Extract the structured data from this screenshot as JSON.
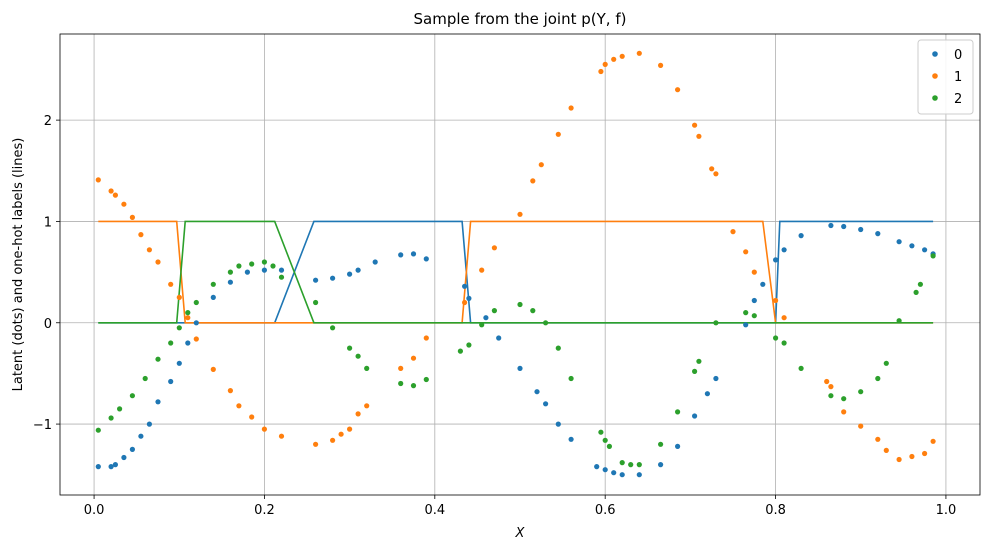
{
  "chart_data": {
    "type": "scatter",
    "title": "Sample from the joint p(Y, f)",
    "xlabel": "X",
    "ylabel": "Latent (dots) and one-hot labels (lines)",
    "xlim": [
      -0.04,
      1.04
    ],
    "ylim": [
      -1.7,
      2.85
    ],
    "xticks": [
      0.0,
      0.2,
      0.4,
      0.6,
      0.8,
      1.0
    ],
    "xtick_labels": [
      "0.0",
      "0.2",
      "0.4",
      "0.6",
      "0.8",
      "1.0"
    ],
    "yticks": [
      -1,
      0,
      1,
      2
    ],
    "ytick_labels": [
      "−1",
      "0",
      "1",
      "2"
    ],
    "grid": true,
    "legend_position": "top-right",
    "series": [
      {
        "name": "0",
        "color": "#1f77b4",
        "points": [
          [
            0.005,
            -1.42
          ],
          [
            0.02,
            -1.42
          ],
          [
            0.025,
            -1.4
          ],
          [
            0.035,
            -1.33
          ],
          [
            0.045,
            -1.25
          ],
          [
            0.055,
            -1.12
          ],
          [
            0.065,
            -1.0
          ],
          [
            0.075,
            -0.78
          ],
          [
            0.09,
            -0.58
          ],
          [
            0.1,
            -0.4
          ],
          [
            0.11,
            -0.2
          ],
          [
            0.12,
            0.0
          ],
          [
            0.14,
            0.25
          ],
          [
            0.16,
            0.4
          ],
          [
            0.18,
            0.5
          ],
          [
            0.2,
            0.52
          ],
          [
            0.22,
            0.52
          ],
          [
            0.26,
            0.42
          ],
          [
            0.28,
            0.44
          ],
          [
            0.3,
            0.48
          ],
          [
            0.31,
            0.52
          ],
          [
            0.33,
            0.6
          ],
          [
            0.36,
            0.67
          ],
          [
            0.375,
            0.68
          ],
          [
            0.39,
            0.63
          ],
          [
            0.435,
            0.36
          ],
          [
            0.44,
            0.24
          ],
          [
            0.46,
            0.05
          ],
          [
            0.475,
            -0.15
          ],
          [
            0.5,
            -0.45
          ],
          [
            0.52,
            -0.68
          ],
          [
            0.53,
            -0.8
          ],
          [
            0.545,
            -1.0
          ],
          [
            0.56,
            -1.15
          ],
          [
            0.59,
            -1.42
          ],
          [
            0.6,
            -1.45
          ],
          [
            0.61,
            -1.48
          ],
          [
            0.62,
            -1.5
          ],
          [
            0.64,
            -1.5
          ],
          [
            0.665,
            -1.4
          ],
          [
            0.685,
            -1.22
          ],
          [
            0.705,
            -0.92
          ],
          [
            0.72,
            -0.7
          ],
          [
            0.73,
            -0.55
          ],
          [
            0.765,
            -0.02
          ],
          [
            0.775,
            0.22
          ],
          [
            0.785,
            0.38
          ],
          [
            0.8,
            0.62
          ],
          [
            0.81,
            0.72
          ],
          [
            0.83,
            0.86
          ],
          [
            0.865,
            0.96
          ],
          [
            0.88,
            0.95
          ],
          [
            0.9,
            0.92
          ],
          [
            0.92,
            0.88
          ],
          [
            0.945,
            0.8
          ],
          [
            0.96,
            0.76
          ],
          [
            0.975,
            0.72
          ],
          [
            0.985,
            0.68
          ]
        ],
        "line": [
          [
            0.005,
            0
          ],
          [
            0.212,
            0
          ],
          [
            0.258,
            1
          ],
          [
            0.432,
            1
          ],
          [
            0.442,
            0
          ],
          [
            0.8,
            0
          ],
          [
            0.805,
            1
          ],
          [
            0.985,
            1
          ]
        ]
      },
      {
        "name": "1",
        "color": "#ff7f0e",
        "points": [
          [
            0.005,
            1.41
          ],
          [
            0.02,
            1.3
          ],
          [
            0.025,
            1.26
          ],
          [
            0.035,
            1.17
          ],
          [
            0.045,
            1.04
          ],
          [
            0.055,
            0.87
          ],
          [
            0.065,
            0.72
          ],
          [
            0.075,
            0.6
          ],
          [
            0.09,
            0.38
          ],
          [
            0.1,
            0.25
          ],
          [
            0.11,
            0.05
          ],
          [
            0.12,
            -0.16
          ],
          [
            0.14,
            -0.46
          ],
          [
            0.16,
            -0.67
          ],
          [
            0.17,
            -0.82
          ],
          [
            0.185,
            -0.93
          ],
          [
            0.2,
            -1.05
          ],
          [
            0.22,
            -1.12
          ],
          [
            0.26,
            -1.2
          ],
          [
            0.28,
            -1.16
          ],
          [
            0.29,
            -1.1
          ],
          [
            0.3,
            -1.05
          ],
          [
            0.31,
            -0.9
          ],
          [
            0.32,
            -0.82
          ],
          [
            0.36,
            -0.45
          ],
          [
            0.375,
            -0.35
          ],
          [
            0.39,
            -0.15
          ],
          [
            0.435,
            0.2
          ],
          [
            0.455,
            0.52
          ],
          [
            0.47,
            0.74
          ],
          [
            0.5,
            1.07
          ],
          [
            0.515,
            1.4
          ],
          [
            0.525,
            1.56
          ],
          [
            0.545,
            1.86
          ],
          [
            0.56,
            2.12
          ],
          [
            0.595,
            2.48
          ],
          [
            0.6,
            2.55
          ],
          [
            0.61,
            2.6
          ],
          [
            0.62,
            2.63
          ],
          [
            0.64,
            2.66
          ],
          [
            0.665,
            2.54
          ],
          [
            0.685,
            2.3
          ],
          [
            0.705,
            1.95
          ],
          [
            0.71,
            1.84
          ],
          [
            0.725,
            1.52
          ],
          [
            0.73,
            1.47
          ],
          [
            0.75,
            0.9
          ],
          [
            0.765,
            0.7
          ],
          [
            0.775,
            0.5
          ],
          [
            0.8,
            0.22
          ],
          [
            0.81,
            0.05
          ],
          [
            0.86,
            -0.58
          ],
          [
            0.865,
            -0.63
          ],
          [
            0.88,
            -0.88
          ],
          [
            0.9,
            -1.02
          ],
          [
            0.92,
            -1.15
          ],
          [
            0.93,
            -1.26
          ],
          [
            0.945,
            -1.35
          ],
          [
            0.96,
            -1.32
          ],
          [
            0.975,
            -1.29
          ],
          [
            0.985,
            -1.17
          ]
        ],
        "line": [
          [
            0.005,
            1
          ],
          [
            0.097,
            1
          ],
          [
            0.107,
            0
          ],
          [
            0.432,
            0
          ],
          [
            0.442,
            1
          ],
          [
            0.785,
            1
          ],
          [
            0.8,
            0
          ],
          [
            0.985,
            0
          ]
        ]
      },
      {
        "name": "2",
        "color": "#2ca02c",
        "points": [
          [
            0.005,
            -1.06
          ],
          [
            0.02,
            -0.94
          ],
          [
            0.03,
            -0.85
          ],
          [
            0.045,
            -0.72
          ],
          [
            0.06,
            -0.55
          ],
          [
            0.075,
            -0.36
          ],
          [
            0.09,
            -0.2
          ],
          [
            0.1,
            -0.05
          ],
          [
            0.11,
            0.1
          ],
          [
            0.12,
            0.2
          ],
          [
            0.14,
            0.38
          ],
          [
            0.16,
            0.5
          ],
          [
            0.17,
            0.56
          ],
          [
            0.185,
            0.58
          ],
          [
            0.2,
            0.6
          ],
          [
            0.21,
            0.56
          ],
          [
            0.22,
            0.45
          ],
          [
            0.26,
            0.2
          ],
          [
            0.28,
            -0.05
          ],
          [
            0.3,
            -0.25
          ],
          [
            0.31,
            -0.33
          ],
          [
            0.32,
            -0.45
          ],
          [
            0.36,
            -0.6
          ],
          [
            0.375,
            -0.62
          ],
          [
            0.39,
            -0.56
          ],
          [
            0.43,
            -0.28
          ],
          [
            0.44,
            -0.22
          ],
          [
            0.455,
            -0.02
          ],
          [
            0.47,
            0.12
          ],
          [
            0.5,
            0.18
          ],
          [
            0.515,
            0.12
          ],
          [
            0.53,
            0.0
          ],
          [
            0.545,
            -0.25
          ],
          [
            0.56,
            -0.55
          ],
          [
            0.595,
            -1.08
          ],
          [
            0.6,
            -1.16
          ],
          [
            0.605,
            -1.22
          ],
          [
            0.62,
            -1.38
          ],
          [
            0.63,
            -1.4
          ],
          [
            0.64,
            -1.4
          ],
          [
            0.665,
            -1.2
          ],
          [
            0.685,
            -0.88
          ],
          [
            0.705,
            -0.48
          ],
          [
            0.71,
            -0.38
          ],
          [
            0.73,
            0.0
          ],
          [
            0.765,
            0.1
          ],
          [
            0.775,
            0.07
          ],
          [
            0.8,
            -0.15
          ],
          [
            0.81,
            -0.2
          ],
          [
            0.83,
            -0.45
          ],
          [
            0.865,
            -0.72
          ],
          [
            0.88,
            -0.75
          ],
          [
            0.9,
            -0.68
          ],
          [
            0.92,
            -0.55
          ],
          [
            0.93,
            -0.4
          ],
          [
            0.945,
            0.02
          ],
          [
            0.965,
            0.3
          ],
          [
            0.97,
            0.38
          ],
          [
            0.985,
            0.66
          ]
        ],
        "line": [
          [
            0.005,
            0
          ],
          [
            0.097,
            0
          ],
          [
            0.107,
            1
          ],
          [
            0.212,
            1
          ],
          [
            0.258,
            0
          ],
          [
            0.985,
            0
          ]
        ]
      }
    ]
  }
}
